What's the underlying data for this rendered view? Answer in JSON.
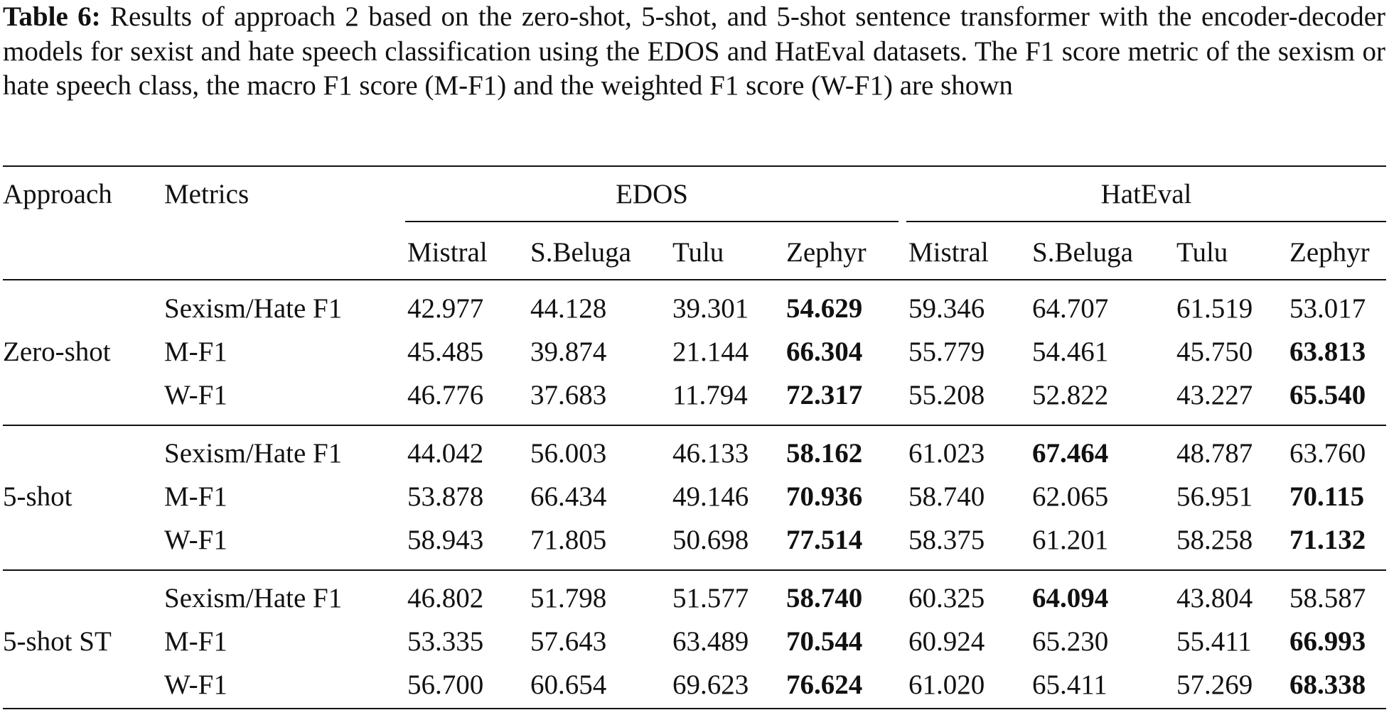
{
  "caption": {
    "label": "Table 6:",
    "text": " Results of approach 2 based on the zero-shot, 5-shot, and 5-shot sentence transformer with the encoder-decoder models for sexist and hate speech classification using the EDOS and HatEval datasets. The F1 score metric of the sexism or hate speech class, the macro F1 score (M-F1) and the weighted F1 score (W-F1) are shown"
  },
  "header": {
    "approach": "Approach",
    "metrics": "Metrics",
    "groups": [
      "EDOS",
      "HatEval"
    ],
    "models": [
      "Mistral",
      "S.Beluga",
      "Tulu",
      "Zephyr",
      "Mistral",
      "S.Beluga",
      "Tulu",
      "Zephyr"
    ]
  },
  "blocks": [
    {
      "approach": "Zero-shot",
      "rows": [
        {
          "metric": "Sexism/Hate F1",
          "values": [
            "42.977",
            "44.128",
            "39.301",
            "54.629",
            "59.346",
            "64.707",
            "61.519",
            "53.017"
          ]
        },
        {
          "metric": "M-F1",
          "values": [
            "45.485",
            "39.874",
            "21.144",
            "66.304",
            "55.779",
            "54.461",
            "45.750",
            "63.813"
          ]
        },
        {
          "metric": "W-F1",
          "values": [
            "46.776",
            "37.683",
            "11.794",
            "72.317",
            "55.208",
            "52.822",
            "43.227",
            "65.540"
          ]
        }
      ]
    },
    {
      "approach": "5-shot",
      "rows": [
        {
          "metric": "Sexism/Hate F1",
          "values": [
            "44.042",
            "56.003",
            "46.133",
            "58.162",
            "61.023",
            "67.464",
            "48.787",
            "63.760"
          ]
        },
        {
          "metric": "M-F1",
          "values": [
            "53.878",
            "66.434",
            "49.146",
            "70.936",
            "58.740",
            "62.065",
            "56.951",
            "70.115"
          ]
        },
        {
          "metric": "W-F1",
          "values": [
            "58.943",
            "71.805",
            "50.698",
            "77.514",
            "58.375",
            "61.201",
            "58.258",
            "71.132"
          ]
        }
      ]
    },
    {
      "approach": "5-shot ST",
      "rows": [
        {
          "metric": "Sexism/Hate F1",
          "values": [
            "46.802",
            "51.798",
            "51.577",
            "58.740",
            "60.325",
            "64.094",
            "43.804",
            "58.587"
          ]
        },
        {
          "metric": "M-F1",
          "values": [
            "53.335",
            "57.643",
            "63.489",
            "70.544",
            "60.924",
            "65.230",
            "55.411",
            "66.993"
          ]
        },
        {
          "metric": "W-F1",
          "values": [
            "56.700",
            "60.654",
            "69.623",
            "76.624",
            "61.020",
            "65.411",
            "57.269",
            "68.338"
          ]
        }
      ]
    }
  ],
  "bold_cells": [
    [
      [
        3
      ],
      [
        3,
        7
      ],
      [
        3,
        7
      ]
    ],
    [
      [
        3,
        5
      ],
      [
        3,
        7
      ],
      [
        3,
        7
      ]
    ],
    [
      [
        3,
        5
      ],
      [
        3,
        7
      ],
      [
        3,
        7
      ]
    ]
  ]
}
